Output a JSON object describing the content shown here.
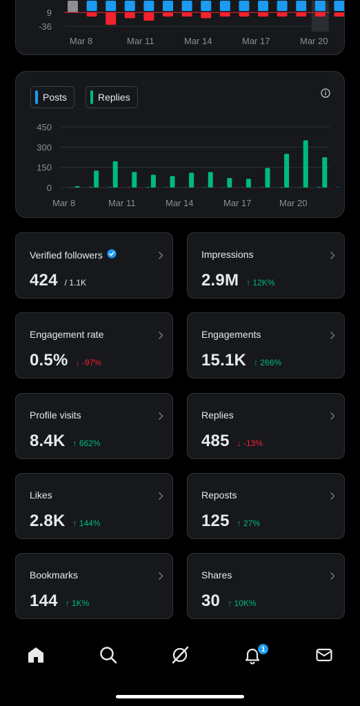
{
  "top_chart": {
    "ytick_labels": [
      "9",
      "-36"
    ],
    "xtick_labels": [
      "Mar 8",
      "Mar 11",
      "Mar 14",
      "Mar 17",
      "Mar 20"
    ]
  },
  "chart_data": [
    {
      "type": "bar",
      "title": "",
      "xlabel": "",
      "ylabel": "",
      "categories": [
        "Mar 7",
        "Mar 8",
        "Mar 9",
        "Mar 10",
        "Mar 11",
        "Mar 12",
        "Mar 13",
        "Mar 14",
        "Mar 15",
        "Mar 16",
        "Mar 17",
        "Mar 18",
        "Mar 19",
        "Mar 20",
        "Mar 21"
      ],
      "series": [
        {
          "name": "positive",
          "color": "#1d9bf0",
          "values": [
            2,
            0,
            0,
            0,
            0,
            0,
            0,
            0,
            0,
            0,
            0,
            0,
            0,
            0,
            0
          ]
        },
        {
          "name": "negative",
          "color": "#f4212e",
          "values": [
            0,
            -5,
            -15,
            -7,
            -10,
            -5,
            -5,
            -7,
            -5,
            -5,
            -5,
            -5,
            -5,
            -5,
            -5
          ]
        }
      ],
      "ytick_values": [
        9,
        -36
      ],
      "xtick_labels": [
        "Mar 8",
        "Mar 11",
        "Mar 14",
        "Mar 17",
        "Mar 20"
      ],
      "highlight_category": "Mar 20"
    },
    {
      "type": "bar",
      "title": "",
      "xlabel": "",
      "ylabel": "",
      "categories": [
        "Mar 7",
        "Mar 8",
        "Mar 9",
        "Mar 10",
        "Mar 11",
        "Mar 12",
        "Mar 13",
        "Mar 14",
        "Mar 15",
        "Mar 16",
        "Mar 17",
        "Mar 18",
        "Mar 19",
        "Mar 20",
        "Mar 21"
      ],
      "series": [
        {
          "name": "Posts",
          "color": "#1d9bf0",
          "values": [
            2,
            4,
            3,
            2,
            3,
            2,
            2,
            2,
            2,
            2,
            2,
            3,
            2,
            4,
            2
          ]
        },
        {
          "name": "Replies",
          "color": "#00ba7c",
          "values": [
            10,
            125,
            195,
            115,
            95,
            85,
            110,
            115,
            70,
            65,
            145,
            250,
            350,
            225,
            0
          ]
        }
      ],
      "ylim": [
        0,
        450
      ],
      "ytick_labels": [
        "450",
        "300",
        "150",
        "0"
      ],
      "xtick_labels": [
        "Mar 8",
        "Mar 11",
        "Mar 14",
        "Mar 17",
        "Mar 20"
      ],
      "grid": true
    }
  ],
  "legend": {
    "posts_label": "Posts",
    "replies_label": "Replies",
    "posts_color": "#1d9bf0",
    "replies_color": "#00ba7c"
  },
  "metrics": [
    {
      "label": "Verified followers",
      "value": "424",
      "sub": "/ 1.1K",
      "change": "",
      "dir": "",
      "verified": true
    },
    {
      "label": "Impressions",
      "value": "2.9M",
      "sub": "",
      "change": "↑ 12K%",
      "dir": "up"
    },
    {
      "label": "Engagement rate",
      "value": "0.5%",
      "sub": "",
      "change": "↓ -97%",
      "dir": "down"
    },
    {
      "label": "Engagements",
      "value": "15.1K",
      "sub": "",
      "change": "↑ 266%",
      "dir": "up"
    },
    {
      "label": "Profile visits",
      "value": "8.4K",
      "sub": "",
      "change": "↑ 662%",
      "dir": "up"
    },
    {
      "label": "Replies",
      "value": "485",
      "sub": "",
      "change": "↓ -13%",
      "dir": "down"
    },
    {
      "label": "Likes",
      "value": "2.8K",
      "sub": "",
      "change": "↑ 144%",
      "dir": "up"
    },
    {
      "label": "Reposts",
      "value": "125",
      "sub": "",
      "change": "↑ 27%",
      "dir": "up"
    },
    {
      "label": "Bookmarks",
      "value": "144",
      "sub": "",
      "change": "↑ 1K%",
      "dir": "up"
    },
    {
      "label": "Shares",
      "value": "30",
      "sub": "",
      "change": "↑ 10K%",
      "dir": "up"
    }
  ],
  "nav": {
    "items": [
      "home-icon",
      "search-icon",
      "grok-icon",
      "bell-icon",
      "mail-icon"
    ],
    "notification_count": "1"
  },
  "colors": {
    "accent": "#1d9bf0",
    "positive": "#00ba7c",
    "negative": "#f4212e"
  }
}
